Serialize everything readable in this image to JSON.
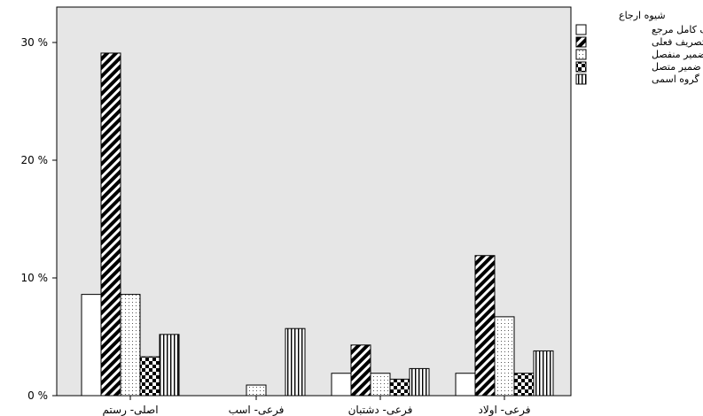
{
  "chart_data": {
    "type": "bar",
    "title": "",
    "xlabel": "",
    "ylabel": "",
    "ylim": [
      0,
      33
    ],
    "y_ticks": [
      {
        "value": 0,
        "label": "0 %"
      },
      {
        "value": 10,
        "label": "10 %"
      },
      {
        "value": 20,
        "label": "20 %"
      },
      {
        "value": 30,
        "label": "30 %"
      }
    ],
    "categories": [
      "اصلی- رستم",
      "فرعی- اسب",
      "فرعی- دشتبان",
      "فرعی- اولاد"
    ],
    "legend_title": "شیوه ارجاع",
    "legend_position": "top-right",
    "plot_background": "#e6e6e6",
    "series": [
      {
        "name": "حذف کامل مرجع",
        "pattern": "empty",
        "values": [
          8.6,
          0.0,
          1.9,
          1.9
        ]
      },
      {
        "name": "تصریف فعلی",
        "pattern": "diagonal",
        "values": [
          29.1,
          0.0,
          4.3,
          11.9
        ]
      },
      {
        "name": "ضمیر منفصل",
        "pattern": "dots",
        "values": [
          8.6,
          0.9,
          1.9,
          6.7
        ]
      },
      {
        "name": "ضمیر متصل",
        "pattern": "checker",
        "values": [
          3.3,
          0.0,
          1.4,
          1.9
        ]
      },
      {
        "name": "گروه اسمی",
        "pattern": "vlines",
        "values": [
          5.2,
          5.7,
          2.3,
          3.8
        ]
      }
    ]
  }
}
